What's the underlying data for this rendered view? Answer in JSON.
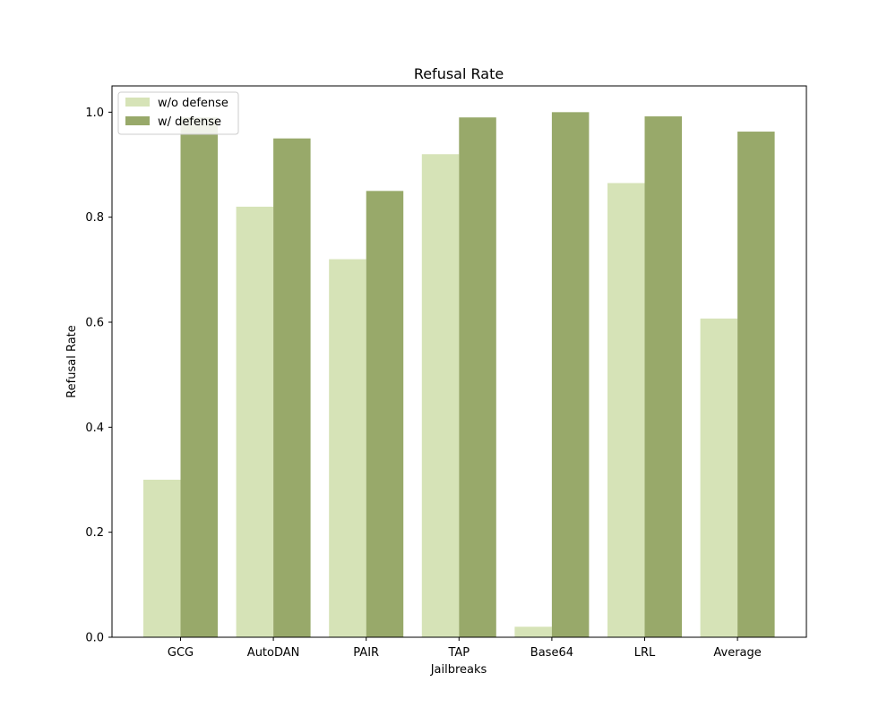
{
  "chart_data": {
    "type": "bar",
    "title": "Refusal Rate",
    "xlabel": "Jailbreaks",
    "ylabel": "Refusal Rate",
    "categories": [
      "GCG",
      "AutoDAN",
      "PAIR",
      "TAP",
      "Base64",
      "LRL",
      "Average"
    ],
    "series": [
      {
        "name": "w/o defense",
        "color": "#d6e3b7",
        "values": [
          0.3,
          0.82,
          0.72,
          0.92,
          0.02,
          0.865,
          0.607
        ]
      },
      {
        "name": "w/ defense",
        "color": "#98a96a",
        "values": [
          0.99,
          0.95,
          0.85,
          0.99,
          1.0,
          0.992,
          0.963
        ]
      }
    ],
    "ylim": [
      0,
      1.05
    ],
    "yticks": [
      "0.0",
      "0.2",
      "0.4",
      "0.6",
      "0.8",
      "1.0"
    ],
    "grid": false,
    "legend": "upper-left"
  }
}
